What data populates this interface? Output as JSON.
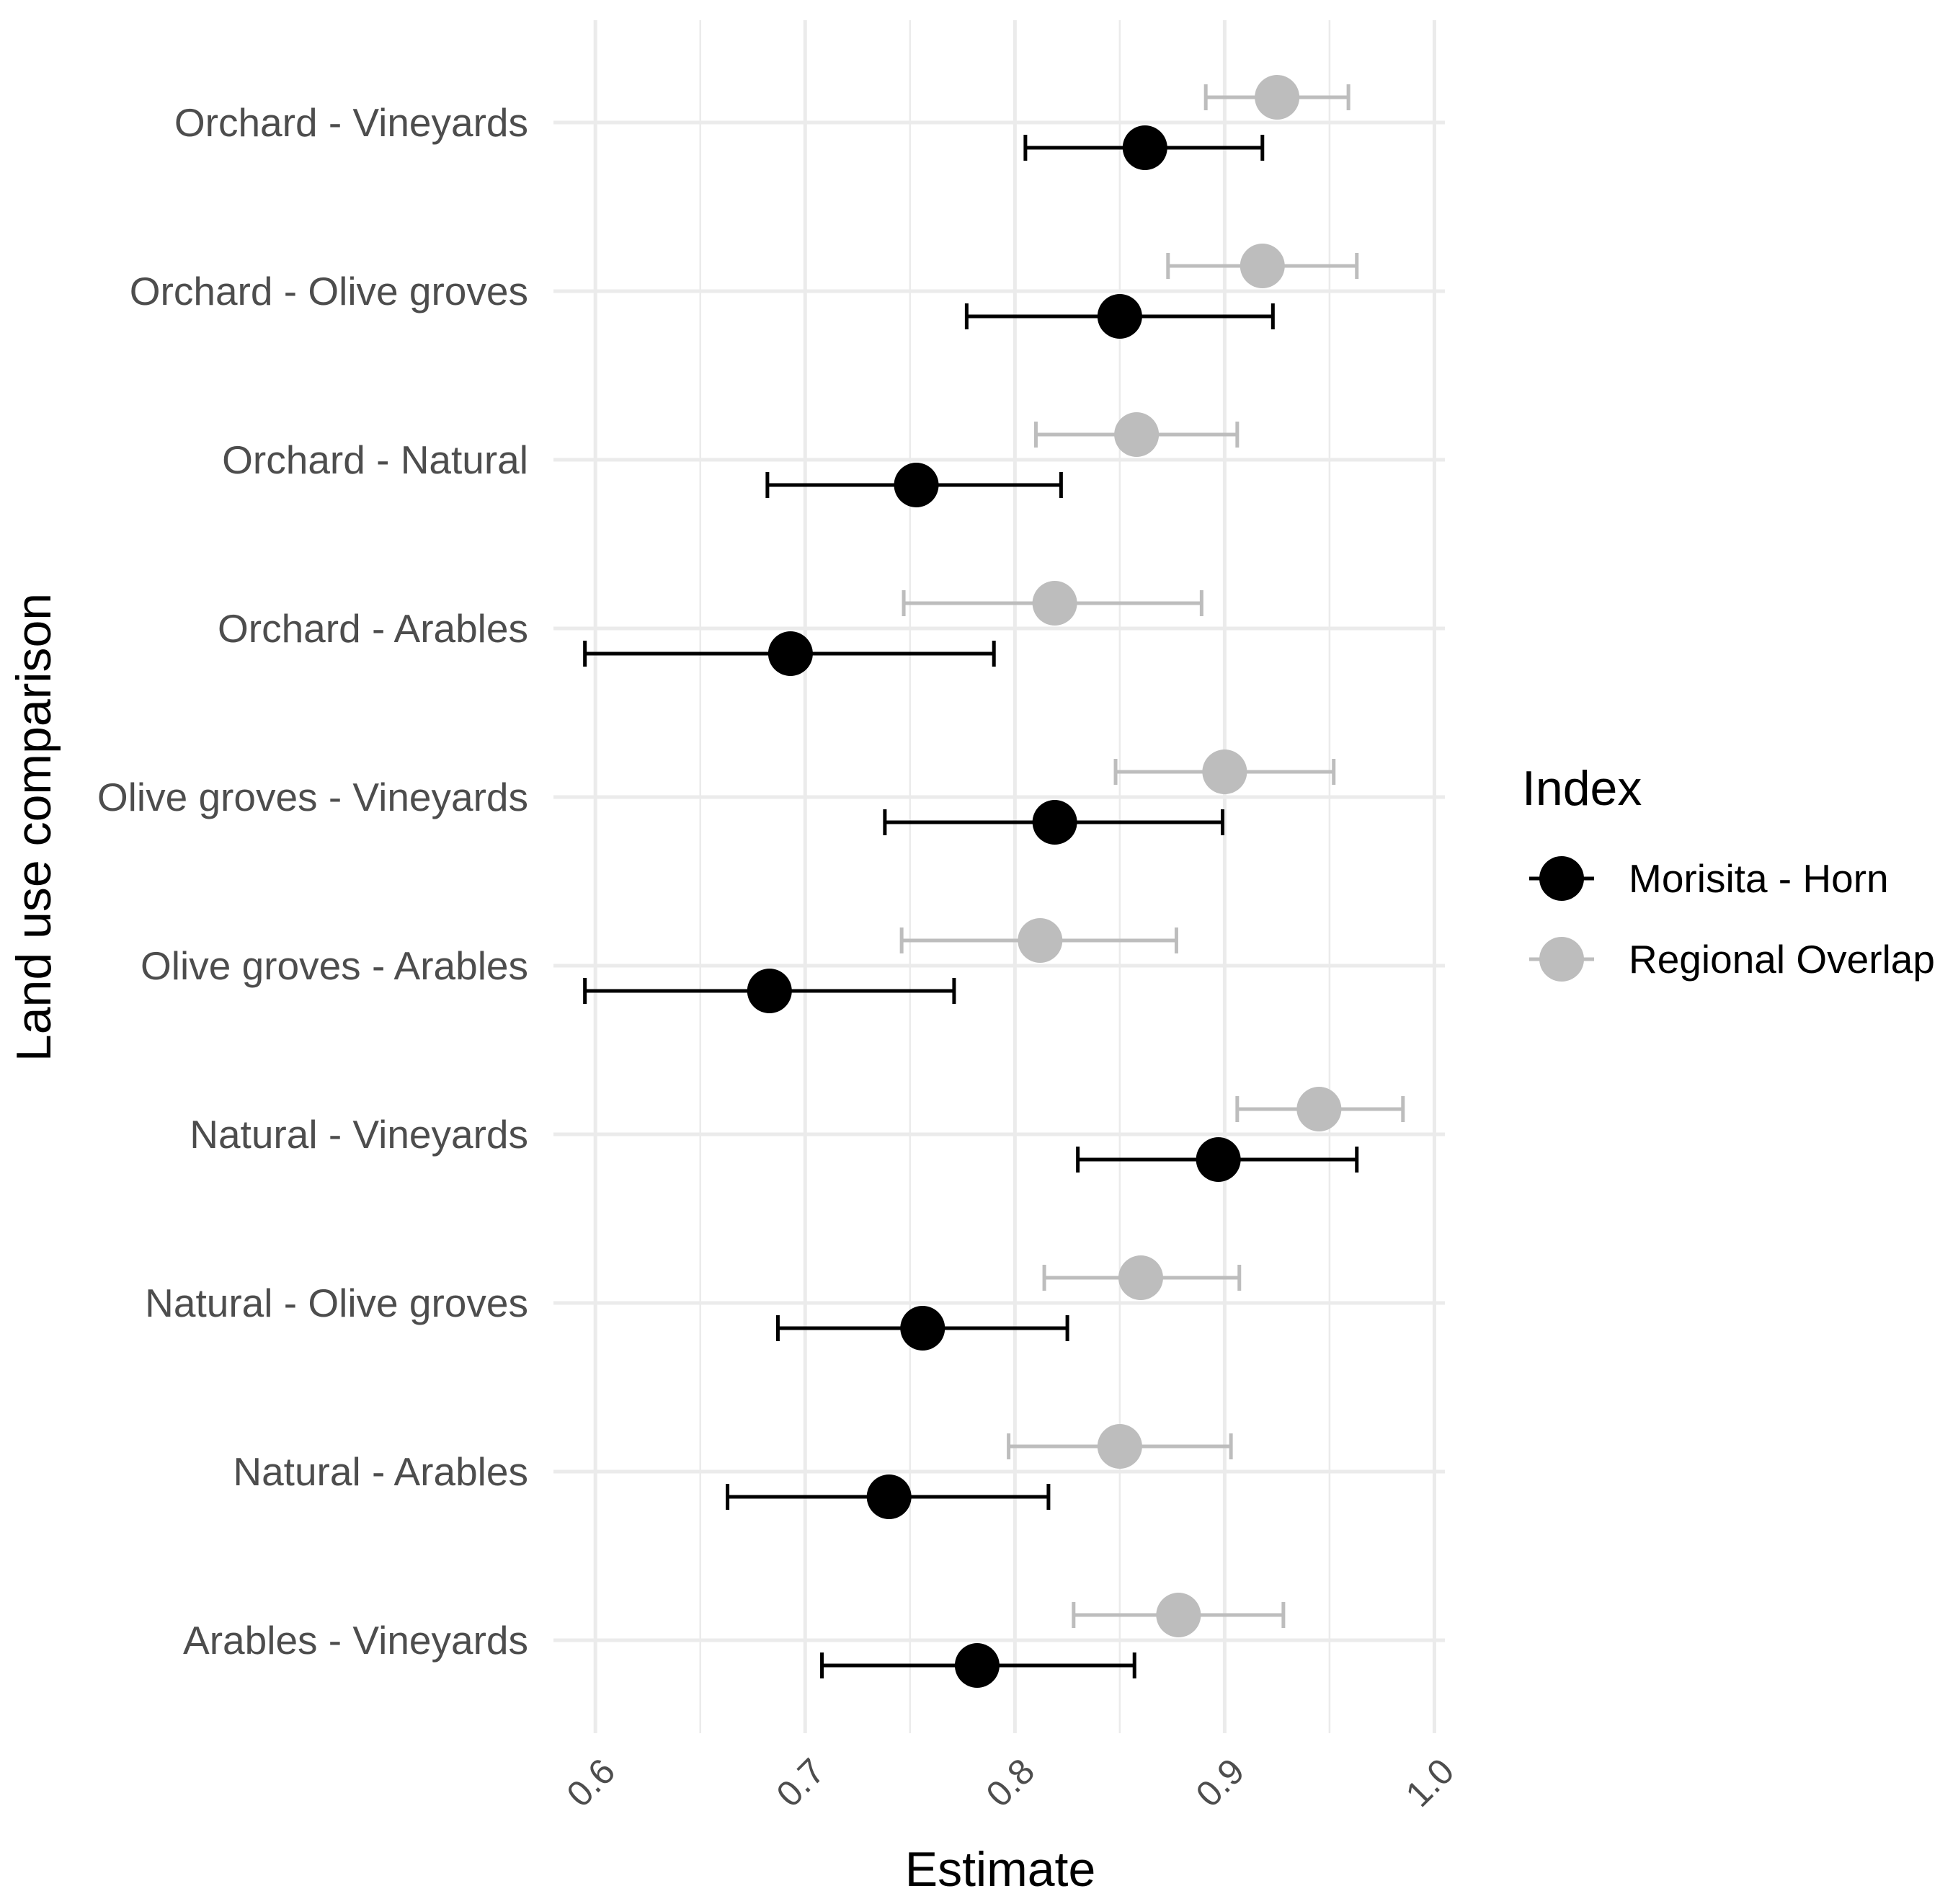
{
  "chart_data": {
    "type": "dot-errorbar",
    "orientation": "horizontal",
    "xlabel": "Estimate",
    "ylabel": "Land use comparison",
    "xlim": [
      0.58,
      1.005
    ],
    "x_ticks": [
      0.6,
      0.7,
      0.8,
      0.9,
      1.0
    ],
    "x_tick_labels": [
      "0.6",
      "0.7",
      "0.8",
      "0.9",
      "1.0"
    ],
    "grid": true,
    "legend": {
      "title": "Index",
      "position": "right"
    },
    "categories": [
      "Orchard - Vineyards",
      "Orchard - Olive groves",
      "Orchard - Natural",
      "Orchard - Arables",
      "Olive groves - Vineyards",
      "Olive groves - Arables",
      "Natural - Vineyards",
      "Natural - Olive groves",
      "Natural - Arables",
      "Arables - Vineyards"
    ],
    "series": [
      {
        "name": "Morisita - Horn",
        "color": "#000000",
        "values": [
          0.862,
          0.85,
          0.753,
          0.693,
          0.819,
          0.683,
          0.897,
          0.756,
          0.74,
          0.782
        ],
        "lower": [
          0.805,
          0.777,
          0.682,
          0.595,
          0.738,
          0.595,
          0.83,
          0.687,
          0.663,
          0.708
        ],
        "upper": [
          0.918,
          0.923,
          0.822,
          0.79,
          0.899,
          0.771,
          0.963,
          0.825,
          0.816,
          0.857
        ]
      },
      {
        "name": "Regional Overlap",
        "color": "#bdbdbd",
        "values": [
          0.925,
          0.918,
          0.858,
          0.819,
          0.9,
          0.812,
          0.945,
          0.86,
          0.85,
          0.878
        ],
        "lower": [
          0.891,
          0.873,
          0.81,
          0.747,
          0.848,
          0.746,
          0.906,
          0.814,
          0.797,
          0.828
        ],
        "upper": [
          0.959,
          0.963,
          0.906,
          0.889,
          0.952,
          0.877,
          0.985,
          0.907,
          0.903,
          0.928
        ]
      }
    ]
  }
}
